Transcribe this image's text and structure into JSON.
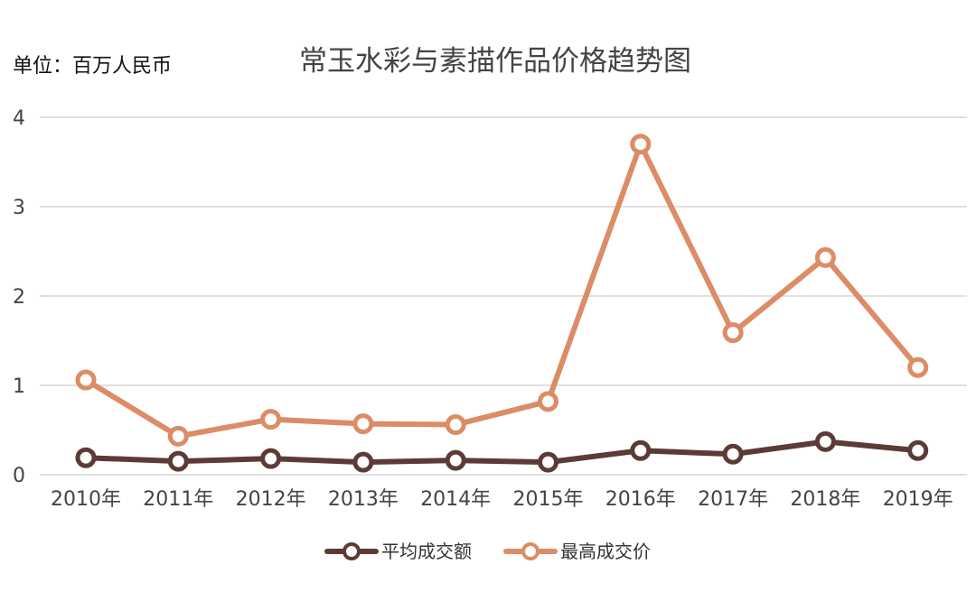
{
  "unit_label": "单位：百万人民币",
  "chart_data": {
    "type": "line",
    "title": "常玉水彩与素描作品价格趋势图",
    "xlabel": "",
    "ylabel": "",
    "categories": [
      "2010年",
      "2011年",
      "2012年",
      "2013年",
      "2014年",
      "2015年",
      "2016年",
      "2017年",
      "2018年",
      "2019年"
    ],
    "ylim": [
      0,
      4
    ],
    "yticks": [
      "0",
      "1",
      "2",
      "3",
      "4"
    ],
    "grid": true,
    "legend_position": "bottom",
    "series": [
      {
        "name": "平均成交额",
        "color": "#5c3b36",
        "values": [
          0.19,
          0.15,
          0.18,
          0.14,
          0.16,
          0.14,
          0.27,
          0.23,
          0.37,
          0.27
        ]
      },
      {
        "name": "最高成交价",
        "color": "#dc8c66",
        "values": [
          1.06,
          0.43,
          0.62,
          0.57,
          0.56,
          0.82,
          3.7,
          1.59,
          2.43,
          1.2
        ]
      }
    ]
  }
}
